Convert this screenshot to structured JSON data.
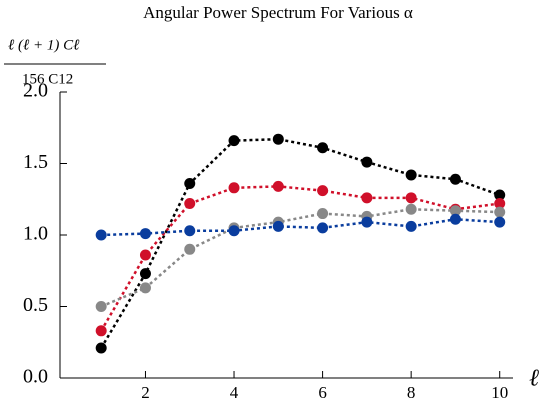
{
  "chart_data": {
    "type": "line",
    "title": "Angular Power Spectrum For Various α",
    "y_label_numerator": "ℓ (ℓ + 1) Cℓ",
    "y_label_denominator": "156 C12",
    "x_label": "ℓ",
    "x": [
      1,
      2,
      3,
      4,
      5,
      6,
      7,
      8,
      9,
      10
    ],
    "series": [
      {
        "color": "#000000",
        "values": [
          0.21,
          0.73,
          1.36,
          1.66,
          1.67,
          1.61,
          1.51,
          1.42,
          1.39,
          1.28
        ]
      },
      {
        "color": "#d0102a",
        "values": [
          0.33,
          0.86,
          1.22,
          1.33,
          1.34,
          1.31,
          1.26,
          1.26,
          1.18,
          1.22
        ]
      },
      {
        "color": "#888888",
        "values": [
          0.5,
          0.63,
          0.9,
          1.05,
          1.09,
          1.15,
          1.13,
          1.18,
          1.17,
          1.16
        ]
      },
      {
        "color": "#0a3d9e",
        "values": [
          1.0,
          1.01,
          1.03,
          1.03,
          1.06,
          1.05,
          1.09,
          1.06,
          1.11,
          1.09
        ]
      }
    ],
    "xlim": [
      0.07,
      10.3
    ],
    "ylim": [
      0,
      2
    ],
    "xticks": [
      2,
      4,
      6,
      8,
      10
    ],
    "yticks": [
      {
        "value": 0,
        "label": "0.0"
      },
      0.5,
      {
        "value": 1,
        "label": "1.0"
      },
      1.5,
      {
        "value": 2,
        "label": "2.0"
      }
    ]
  }
}
